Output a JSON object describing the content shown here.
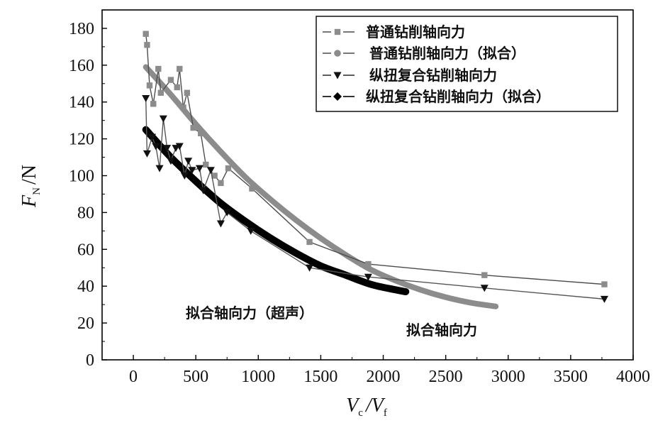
{
  "chart_data": {
    "type": "line",
    "xlabel": {
      "main": "V",
      "sub1": "c",
      "sep": "/",
      "main2": "V",
      "sub2": "f"
    },
    "ylabel": {
      "main": "F",
      "sub": "N",
      "unit": "/N"
    },
    "xlim": [
      -250,
      4000
    ],
    "ylim": [
      0,
      190
    ],
    "xticks": [
      0,
      500,
      1000,
      1500,
      2000,
      2500,
      3000,
      3500,
      4000
    ],
    "yticks": [
      0,
      20,
      40,
      60,
      80,
      100,
      120,
      140,
      160,
      180
    ],
    "grid": false,
    "legend_position": "top-right",
    "series": [
      {
        "name": "普通钻削轴向力",
        "marker": "square",
        "color": "#8c8c8c",
        "line_color": "#4d4d4d",
        "x": [
          100,
          110,
          130,
          160,
          200,
          220,
          300,
          350,
          370,
          400,
          430,
          480,
          540,
          580,
          650,
          700,
          760,
          950,
          1410,
          1880,
          2810,
          3770
        ],
        "y": [
          177,
          171,
          149,
          139,
          158,
          145,
          152,
          148,
          158,
          137,
          145,
          126,
          123,
          106,
          100,
          96,
          104,
          93,
          64,
          52,
          46,
          41
        ]
      },
      {
        "name": "普通钻削轴向力（拟合）",
        "marker": "circle",
        "color": "#8c8c8c",
        "fit": true,
        "x": [
          100,
          300,
          500,
          700,
          900,
          1100,
          1300,
          1500,
          1700,
          1900,
          2100,
          2300,
          2500,
          2700,
          2900
        ],
        "y": [
          159,
          144,
          128,
          113,
          99,
          87,
          76,
          66,
          57,
          49,
          43,
          38,
          34,
          31,
          29
        ]
      },
      {
        "name": "纵扭复合钻削轴向力",
        "marker": "triangle-down",
        "color": "#111111",
        "line_color": "#555555",
        "x": [
          100,
          110,
          150,
          180,
          210,
          240,
          270,
          300,
          340,
          370,
          410,
          440,
          470,
          530,
          560,
          620,
          700,
          750,
          940,
          1410,
          1880,
          2810,
          3770
        ],
        "y": [
          142,
          112,
          121,
          116,
          104,
          131,
          115,
          108,
          115,
          116,
          100,
          108,
          103,
          104,
          92,
          103,
          74,
          80,
          70,
          50,
          45,
          39,
          33
        ]
      },
      {
        "name": "纵扭复合钻削轴向力（拟合）",
        "marker": "diamond",
        "color": "#000000",
        "fit": true,
        "x": [
          100,
          300,
          500,
          700,
          900,
          1100,
          1300,
          1500,
          1700,
          1900,
          2100,
          2180
        ],
        "y": [
          125,
          110,
          97,
          85,
          75,
          66,
          58,
          51,
          46,
          41,
          38,
          37
        ]
      }
    ],
    "annotations": [
      {
        "text": "拟合轴向力（超声）"
      },
      {
        "text": "拟合轴向力"
      }
    ]
  }
}
